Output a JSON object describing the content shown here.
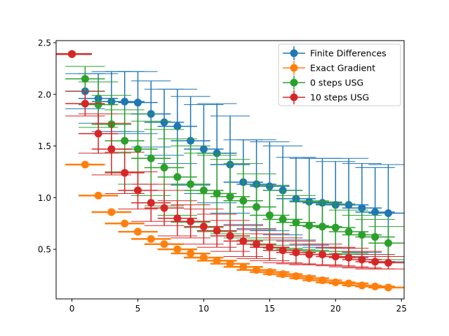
{
  "chart_data": {
    "type": "scatter",
    "xlim": [
      -1.2,
      25.2
    ],
    "ylim": [
      0.02,
      2.52
    ],
    "xticks": [
      0,
      5,
      10,
      15,
      20,
      25
    ],
    "yticks": [
      0.5,
      1.0,
      1.5,
      2.0,
      2.5
    ],
    "xtick_labels": [
      "0",
      "5",
      "10",
      "15",
      "20",
      "25"
    ],
    "ytick_labels": [
      "0.5",
      "1.0",
      "1.5",
      "2.0",
      "2.5"
    ],
    "legend_position": "upper right",
    "grid": false,
    "series": [
      {
        "name": "Finite Differences",
        "color": "#1f77b4",
        "x": [
          0,
          1,
          2,
          3,
          4,
          5,
          6,
          7,
          8,
          9,
          10,
          11,
          12,
          13,
          14,
          15,
          16,
          17,
          18,
          19,
          20,
          21,
          22,
          23,
          24
        ],
        "y": [
          2.39,
          2.03,
          1.96,
          1.93,
          1.93,
          1.92,
          1.81,
          1.73,
          1.69,
          1.55,
          1.47,
          1.43,
          1.32,
          1.15,
          1.13,
          1.11,
          1.07,
          0.99,
          0.96,
          0.95,
          0.93,
          0.93,
          0.9,
          0.86,
          0.85
        ],
        "y_err": [
          0.005,
          0.17,
          0.24,
          0.29,
          0.29,
          0.3,
          0.32,
          0.32,
          0.36,
          0.43,
          0.43,
          0.48,
          0.47,
          0.41,
          0.43,
          0.43,
          0.43,
          0.4,
          0.42,
          0.43,
          0.42,
          0.45,
          0.43,
          0.43,
          0.47
        ],
        "x_err": 1.5
      },
      {
        "name": "Exact Gradient",
        "color": "#ff7f0e",
        "x": [
          0,
          1,
          2,
          3,
          4,
          5,
          6,
          7,
          8,
          9,
          10,
          11,
          12,
          13,
          14,
          15,
          16,
          17,
          18,
          19,
          20,
          21,
          22,
          23,
          24
        ],
        "y": [
          2.39,
          1.32,
          1.02,
          0.86,
          0.75,
          0.67,
          0.6,
          0.55,
          0.5,
          0.46,
          0.42,
          0.39,
          0.36,
          0.33,
          0.3,
          0.28,
          0.26,
          0.24,
          0.22,
          0.2,
          0.18,
          0.17,
          0.15,
          0.14,
          0.13
        ],
        "y_err": [
          0.005,
          0.005,
          0.005,
          0.005,
          0.005,
          0.005,
          0.005,
          0.005,
          0.005,
          0.005,
          0.005,
          0.005,
          0.005,
          0.005,
          0.005,
          0.005,
          0.005,
          0.005,
          0.005,
          0.005,
          0.005,
          0.005,
          0.005,
          0.005,
          0.005
        ],
        "x_err": 1.5
      },
      {
        "name": "0 steps USG",
        "color": "#2ca02c",
        "x": [
          0,
          1,
          2,
          3,
          4,
          5,
          6,
          7,
          8,
          9,
          10,
          11,
          12,
          13,
          14,
          15,
          16,
          17,
          18,
          19,
          20,
          21,
          22,
          23,
          24
        ],
        "y": [
          2.39,
          2.15,
          1.9,
          1.71,
          1.55,
          1.47,
          1.38,
          1.29,
          1.2,
          1.13,
          1.07,
          1.04,
          1.01,
          0.97,
          0.91,
          0.83,
          0.79,
          0.76,
          0.73,
          0.72,
          0.71,
          0.67,
          0.64,
          0.62,
          0.56
        ],
        "y_err": [
          0.005,
          0.12,
          0.22,
          0.28,
          0.3,
          0.34,
          0.36,
          0.37,
          0.37,
          0.37,
          0.36,
          0.37,
          0.36,
          0.36,
          0.32,
          0.29,
          0.28,
          0.26,
          0.24,
          0.24,
          0.23,
          0.21,
          0.19,
          0.17,
          0.16
        ],
        "x_err": 1.5
      },
      {
        "name": "10 steps USG",
        "color": "#d62728",
        "x": [
          0,
          1,
          2,
          3,
          4,
          5,
          6,
          7,
          8,
          9,
          10,
          11,
          12,
          13,
          14,
          15,
          16,
          17,
          18,
          19,
          20,
          21,
          22,
          23,
          24
        ],
        "y": [
          2.39,
          1.91,
          1.62,
          1.47,
          1.24,
          1.07,
          0.95,
          0.9,
          0.8,
          0.77,
          0.72,
          0.68,
          0.63,
          0.58,
          0.55,
          0.52,
          0.49,
          0.47,
          0.45,
          0.45,
          0.43,
          0.42,
          0.4,
          0.38,
          0.37
        ],
        "y_err": [
          0.005,
          0.12,
          0.19,
          0.25,
          0.2,
          0.18,
          0.18,
          0.17,
          0.17,
          0.16,
          0.17,
          0.16,
          0.15,
          0.15,
          0.14,
          0.13,
          0.12,
          0.11,
          0.1,
          0.1,
          0.09,
          0.09,
          0.08,
          0.07,
          0.06
        ],
        "x_err": 1.5
      }
    ]
  }
}
